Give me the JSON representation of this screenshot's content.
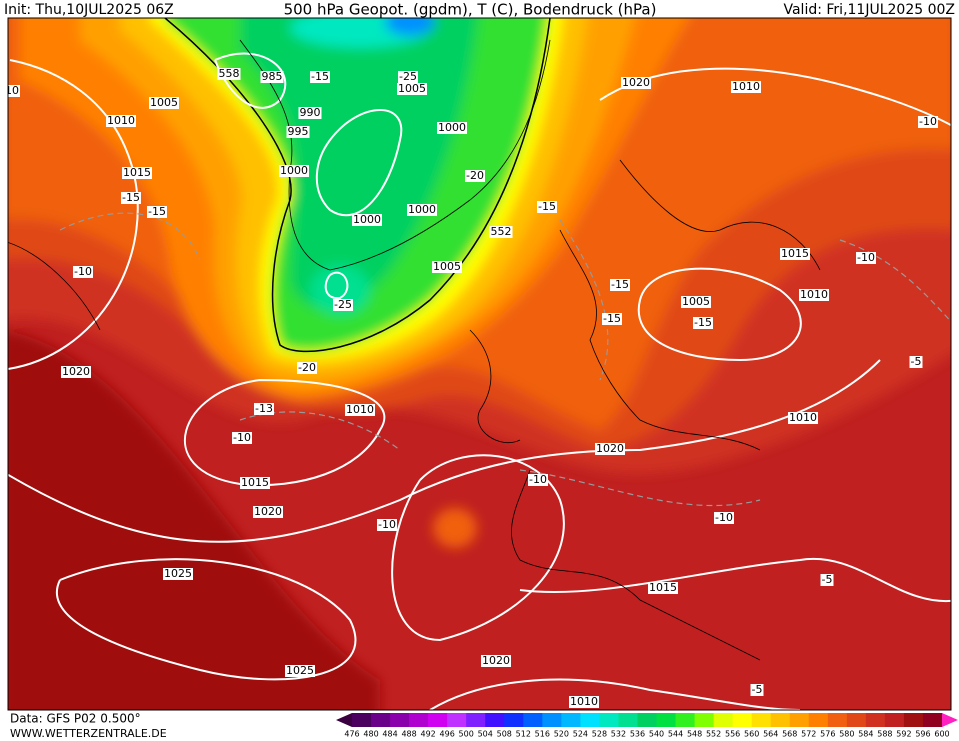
{
  "header": {
    "init": "Init: Thu,10JUL2025 06Z",
    "title": "500 hPa Geopot. (gpdm), T (C), Bodendruck (hPa)",
    "valid": "Valid: Fri,11JUL2025 00Z"
  },
  "footer": {
    "data": "Data: GFS P02 0.500°",
    "site": "WWW.WETTERZENTRALE.DE"
  },
  "colorbar": {
    "ticks": [
      476,
      480,
      484,
      488,
      492,
      496,
      500,
      504,
      508,
      512,
      516,
      520,
      524,
      528,
      532,
      536,
      540,
      544,
      548,
      552,
      556,
      560,
      564,
      568,
      572,
      576,
      580,
      584,
      588,
      592,
      596,
      600
    ],
    "colors": [
      "#3a0040",
      "#4b0060",
      "#6a008a",
      "#8a00aa",
      "#b000d0",
      "#d000f0",
      "#c030ff",
      "#8020ff",
      "#4010ff",
      "#1030ff",
      "#0060ff",
      "#0090ff",
      "#00b8ff",
      "#00e0ff",
      "#00e8c0",
      "#00e090",
      "#00d060",
      "#00e040",
      "#30f020",
      "#80ff00",
      "#e0ff00",
      "#ffff00",
      "#ffe000",
      "#ffc000",
      "#ffa000",
      "#ff8000",
      "#f06010",
      "#e04818",
      "#d03020",
      "#c02020",
      "#a01010",
      "#900020",
      "#ff20c0"
    ]
  },
  "map_labels": [
    "558",
    "985",
    "-15",
    "-25",
    "1005",
    "990",
    "995",
    "1000",
    "1005",
    "1010",
    "1000",
    "-20",
    "1000",
    "1000",
    "552",
    "1005",
    "-25",
    "-20",
    "1015",
    "-15",
    "-15",
    "-10",
    "1020",
    "1020",
    "1010",
    "-10",
    "-15",
    "1015",
    "-10",
    "1010",
    "1005",
    "-15",
    "-15",
    "-15",
    "1010",
    "-13",
    "-10",
    "1020",
    "1010",
    "-5",
    "1015",
    "1020",
    "-10",
    "-10",
    "-10",
    "1025",
    "1015",
    "-5",
    "1025",
    "1020",
    "1010",
    "-5",
    "10"
  ]
}
